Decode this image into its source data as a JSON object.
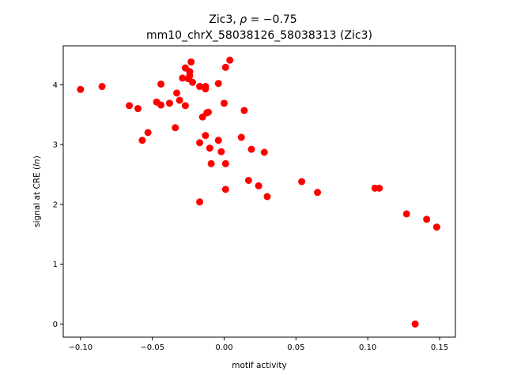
{
  "chart_data": {
    "type": "scatter",
    "title_line1": "Zic3, ",
    "title_rho_symbol": "ρ",
    "title_rho_value": " = −0.75",
    "title_line2": "mm10_chrX_58038126_58038313 (Zic3)",
    "xlabel": "motif activity",
    "ylabel_prefix": "signal at CRE (",
    "ylabel_italic": "ln",
    "ylabel_suffix": ")",
    "xlim": [
      -0.112,
      0.161
    ],
    "ylim": [
      -0.22,
      4.65
    ],
    "xticks": [
      -0.1,
      -0.05,
      0.0,
      0.05,
      0.1,
      0.15
    ],
    "xtick_labels": [
      "−0.10",
      "−0.05",
      "0.00",
      "0.05",
      "0.10",
      "0.15"
    ],
    "yticks": [
      0,
      1,
      2,
      3,
      4
    ],
    "ytick_labels": [
      "0",
      "1",
      "2",
      "3",
      "4"
    ],
    "marker_color": "#ff0000",
    "grid": false,
    "points": [
      {
        "x": -0.1,
        "y": 3.92
      },
      {
        "x": -0.085,
        "y": 3.97
      },
      {
        "x": -0.066,
        "y": 3.65
      },
      {
        "x": -0.06,
        "y": 3.6
      },
      {
        "x": -0.057,
        "y": 3.07
      },
      {
        "x": -0.053,
        "y": 3.2
      },
      {
        "x": -0.047,
        "y": 3.71
      },
      {
        "x": -0.044,
        "y": 4.01
      },
      {
        "x": -0.044,
        "y": 3.66
      },
      {
        "x": -0.038,
        "y": 3.69
      },
      {
        "x": -0.034,
        "y": 3.28
      },
      {
        "x": -0.033,
        "y": 3.86
      },
      {
        "x": -0.031,
        "y": 3.74
      },
      {
        "x": -0.029,
        "y": 4.11
      },
      {
        "x": -0.027,
        "y": 4.28
      },
      {
        "x": -0.027,
        "y": 3.65
      },
      {
        "x": -0.025,
        "y": 4.1
      },
      {
        "x": -0.024,
        "y": 4.22
      },
      {
        "x": -0.024,
        "y": 4.15
      },
      {
        "x": -0.023,
        "y": 4.38
      },
      {
        "x": -0.022,
        "y": 4.04
      },
      {
        "x": -0.017,
        "y": 3.97
      },
      {
        "x": -0.017,
        "y": 3.03
      },
      {
        "x": -0.017,
        "y": 2.04
      },
      {
        "x": -0.015,
        "y": 3.46
      },
      {
        "x": -0.013,
        "y": 3.97
      },
      {
        "x": -0.013,
        "y": 3.93
      },
      {
        "x": -0.013,
        "y": 3.15
      },
      {
        "x": -0.012,
        "y": 3.53
      },
      {
        "x": -0.011,
        "y": 3.54
      },
      {
        "x": -0.01,
        "y": 2.94
      },
      {
        "x": -0.009,
        "y": 2.68
      },
      {
        "x": -0.004,
        "y": 4.02
      },
      {
        "x": -0.004,
        "y": 3.07
      },
      {
        "x": -0.002,
        "y": 2.88
      },
      {
        "x": 0.0,
        "y": 3.69
      },
      {
        "x": 0.001,
        "y": 4.29
      },
      {
        "x": 0.001,
        "y": 2.68
      },
      {
        "x": 0.001,
        "y": 2.25
      },
      {
        "x": 0.004,
        "y": 4.41
      },
      {
        "x": 0.012,
        "y": 3.12
      },
      {
        "x": 0.014,
        "y": 3.57
      },
      {
        "x": 0.017,
        "y": 2.4
      },
      {
        "x": 0.019,
        "y": 2.92
      },
      {
        "x": 0.024,
        "y": 2.31
      },
      {
        "x": 0.028,
        "y": 2.87
      },
      {
        "x": 0.03,
        "y": 2.13
      },
      {
        "x": 0.054,
        "y": 2.38
      },
      {
        "x": 0.065,
        "y": 2.2
      },
      {
        "x": 0.105,
        "y": 2.27
      },
      {
        "x": 0.108,
        "y": 2.27
      },
      {
        "x": 0.127,
        "y": 1.84
      },
      {
        "x": 0.133,
        "y": 0.0
      },
      {
        "x": 0.141,
        "y": 1.75
      },
      {
        "x": 0.148,
        "y": 1.62
      }
    ]
  }
}
